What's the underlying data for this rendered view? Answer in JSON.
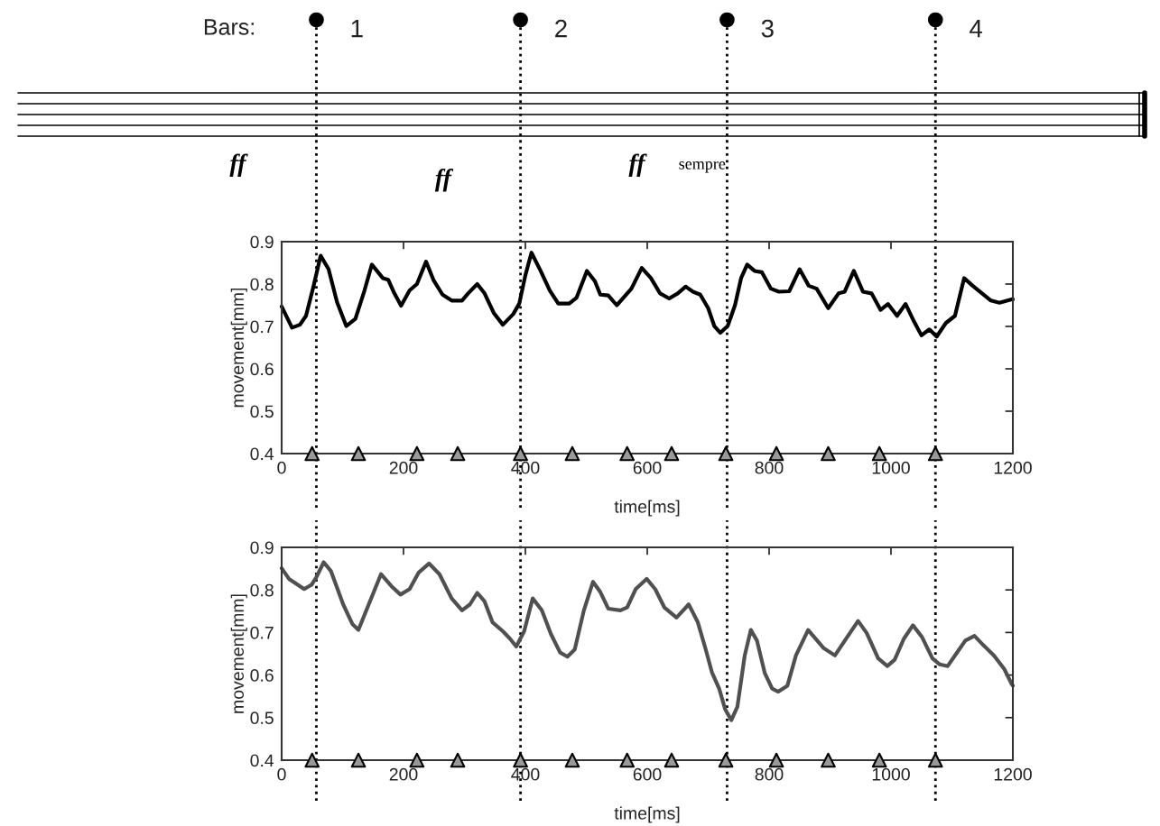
{
  "chart_data": [
    {
      "type": "line",
      "xlabel": "time[ms]",
      "ylabel": "movement[mm]",
      "xlim": [
        0,
        1200
      ],
      "xticks": [
        0,
        200,
        400,
        600,
        800,
        1000,
        1200
      ],
      "ylim": [
        0.4,
        0.9
      ],
      "yticks": [
        0.4,
        0.5,
        0.6,
        0.7,
        0.8,
        0.9
      ],
      "grid": false,
      "annotations": [
        "Bars:",
        "ff",
        "ff",
        "ff",
        "sempre",
        "1",
        "2",
        "3",
        "4"
      ],
      "ref_lines": [
        {
          "axis": "x",
          "value": 57,
          "line_style": "dotted",
          "color": "#000000"
        },
        {
          "axis": "x",
          "value": 392,
          "line_style": "dotted",
          "color": "#000000"
        },
        {
          "axis": "x",
          "value": 731,
          "line_style": "dotted",
          "color": "#000000"
        },
        {
          "axis": "x",
          "value": 1073,
          "line_style": "dotted",
          "color": "#000000"
        }
      ],
      "series": [
        {
          "color": "#000000",
          "x": [
            0,
            17,
            30,
            40,
            52,
            64,
            77,
            91,
            106,
            121,
            136,
            148,
            166,
            175,
            185,
            196,
            210,
            222,
            237,
            249,
            264,
            279,
            296,
            306,
            321,
            333,
            348,
            363,
            380,
            390,
            400,
            410,
            425,
            440,
            454,
            472,
            484,
            501,
            514,
            523,
            536,
            550,
            574,
            591,
            606,
            621,
            636,
            650,
            663,
            675,
            687,
            700,
            710,
            720,
            732,
            744,
            754,
            764,
            776,
            788,
            803,
            816,
            833,
            850,
            865,
            878,
            897,
            914,
            924,
            939,
            954,
            968,
            983,
            995,
            1010,
            1024,
            1038,
            1050,
            1063,
            1075,
            1090,
            1105,
            1120,
            1134,
            1164,
            1178,
            1198,
            1200
          ],
          "values": [
            0.747,
            0.697,
            0.704,
            0.725,
            0.793,
            0.867,
            0.835,
            0.757,
            0.701,
            0.718,
            0.785,
            0.846,
            0.814,
            0.81,
            0.778,
            0.749,
            0.785,
            0.8,
            0.853,
            0.81,
            0.775,
            0.761,
            0.761,
            0.778,
            0.8,
            0.778,
            0.732,
            0.704,
            0.729,
            0.754,
            0.821,
            0.874,
            0.831,
            0.785,
            0.754,
            0.754,
            0.768,
            0.831,
            0.807,
            0.775,
            0.773,
            0.75,
            0.789,
            0.838,
            0.814,
            0.778,
            0.766,
            0.778,
            0.794,
            0.782,
            0.775,
            0.743,
            0.701,
            0.685,
            0.701,
            0.75,
            0.814,
            0.846,
            0.831,
            0.828,
            0.789,
            0.782,
            0.783,
            0.835,
            0.796,
            0.789,
            0.743,
            0.778,
            0.782,
            0.831,
            0.782,
            0.778,
            0.739,
            0.753,
            0.725,
            0.753,
            0.711,
            0.679,
            0.693,
            0.676,
            0.708,
            0.725,
            0.814,
            0.796,
            0.761,
            0.756,
            0.764,
            0.764
          ]
        },
        {
          "type": "scatter",
          "marker": "triangle",
          "color": "#999999",
          "x": [
            50,
            126,
            222,
            289,
            392,
            477,
            567,
            640,
            729,
            812,
            897,
            981,
            1073
          ],
          "values": [
            0.4,
            0.4,
            0.4,
            0.4,
            0.4,
            0.4,
            0.4,
            0.4,
            0.4,
            0.4,
            0.4,
            0.4,
            0.4
          ]
        }
      ]
    },
    {
      "type": "line",
      "xlabel": "time[ms]",
      "ylabel": "movement[mm]",
      "xlim": [
        0,
        1200
      ],
      "xticks": [
        0,
        200,
        400,
        600,
        800,
        1000,
        1200
      ],
      "ylim": [
        0.4,
        0.9
      ],
      "yticks": [
        0.4,
        0.5,
        0.6,
        0.7,
        0.8,
        0.9
      ],
      "grid": false,
      "ref_lines": [
        {
          "axis": "x",
          "value": 57,
          "line_style": "dotted",
          "color": "#000000"
        },
        {
          "axis": "x",
          "value": 392,
          "line_style": "dotted",
          "color": "#000000"
        },
        {
          "axis": "x",
          "value": 731,
          "line_style": "dotted",
          "color": "#000000"
        },
        {
          "axis": "x",
          "value": 1073,
          "line_style": "dotted",
          "color": "#000000"
        }
      ],
      "series": [
        {
          "color": "#505050",
          "x": [
            0,
            12,
            37,
            49,
            57,
            69,
            81,
            101,
            116,
            126,
            141,
            163,
            180,
            195,
            210,
            225,
            242,
            259,
            279,
            296,
            309,
            321,
            333,
            346,
            363,
            375,
            385,
            398,
            412,
            427,
            442,
            457,
            469,
            481,
            496,
            511,
            523,
            536,
            556,
            567,
            581,
            599,
            613,
            628,
            648,
            668,
            683,
            696,
            706,
            718,
            728,
            738,
            748,
            760,
            770,
            780,
            793,
            805,
            815,
            830,
            844,
            864,
            889,
            908,
            928,
            946,
            960,
            979,
            994,
            1006,
            1021,
            1036,
            1051,
            1068,
            1080,
            1093,
            1107,
            1122,
            1137,
            1151,
            1169,
            1186,
            1198,
            1200
          ],
          "values": [
            0.851,
            0.826,
            0.802,
            0.812,
            0.83,
            0.865,
            0.844,
            0.766,
            0.72,
            0.706,
            0.759,
            0.837,
            0.809,
            0.789,
            0.802,
            0.841,
            0.862,
            0.837,
            0.78,
            0.752,
            0.766,
            0.793,
            0.773,
            0.724,
            0.703,
            0.685,
            0.667,
            0.703,
            0.78,
            0.752,
            0.696,
            0.653,
            0.643,
            0.66,
            0.752,
            0.819,
            0.795,
            0.756,
            0.752,
            0.759,
            0.802,
            0.826,
            0.802,
            0.759,
            0.735,
            0.766,
            0.724,
            0.66,
            0.607,
            0.568,
            0.519,
            0.494,
            0.526,
            0.646,
            0.706,
            0.681,
            0.604,
            0.568,
            0.561,
            0.575,
            0.646,
            0.706,
            0.664,
            0.646,
            0.689,
            0.727,
            0.699,
            0.639,
            0.621,
            0.636,
            0.685,
            0.717,
            0.689,
            0.639,
            0.625,
            0.621,
            0.65,
            0.681,
            0.692,
            0.671,
            0.646,
            0.614,
            0.579,
            0.575
          ]
        },
        {
          "type": "scatter",
          "marker": "triangle",
          "color": "#999999",
          "x": [
            50,
            126,
            222,
            289,
            392,
            477,
            567,
            640,
            729,
            812,
            897,
            981,
            1073
          ],
          "values": [
            0.4,
            0.4,
            0.4,
            0.4,
            0.4,
            0.4,
            0.4,
            0.4,
            0.4,
            0.4,
            0.4,
            0.4,
            0.4
          ]
        }
      ]
    }
  ]
}
